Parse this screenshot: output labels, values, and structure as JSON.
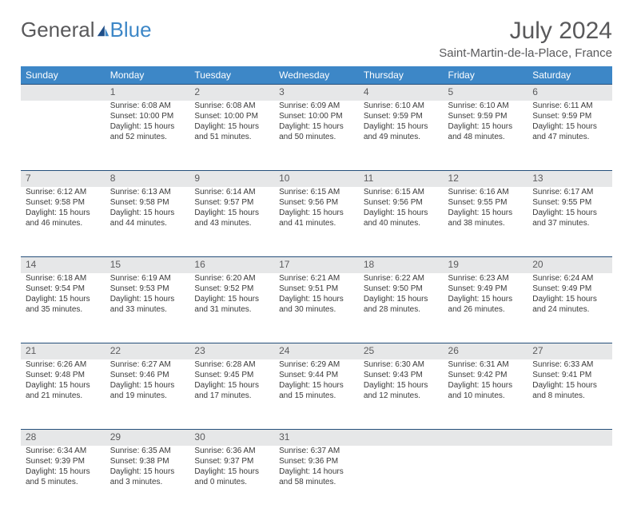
{
  "logo": {
    "text1": "General",
    "text2": "Blue"
  },
  "title": "July 2024",
  "location": "Saint-Martin-de-la-Place, France",
  "colors": {
    "header_bg": "#3d87c7",
    "header_text": "#ffffff",
    "daynum_bg": "#e6e7e8",
    "daynum_border": "#254f7a",
    "body_text": "#3a3a3a",
    "title_text": "#59595b"
  },
  "weekdays": [
    "Sunday",
    "Monday",
    "Tuesday",
    "Wednesday",
    "Thursday",
    "Friday",
    "Saturday"
  ],
  "weeks": [
    {
      "nums": [
        "",
        "1",
        "2",
        "3",
        "4",
        "5",
        "6"
      ],
      "cells": [
        [],
        [
          "Sunrise: 6:08 AM",
          "Sunset: 10:00 PM",
          "Daylight: 15 hours",
          "and 52 minutes."
        ],
        [
          "Sunrise: 6:08 AM",
          "Sunset: 10:00 PM",
          "Daylight: 15 hours",
          "and 51 minutes."
        ],
        [
          "Sunrise: 6:09 AM",
          "Sunset: 10:00 PM",
          "Daylight: 15 hours",
          "and 50 minutes."
        ],
        [
          "Sunrise: 6:10 AM",
          "Sunset: 9:59 PM",
          "Daylight: 15 hours",
          "and 49 minutes."
        ],
        [
          "Sunrise: 6:10 AM",
          "Sunset: 9:59 PM",
          "Daylight: 15 hours",
          "and 48 minutes."
        ],
        [
          "Sunrise: 6:11 AM",
          "Sunset: 9:59 PM",
          "Daylight: 15 hours",
          "and 47 minutes."
        ]
      ]
    },
    {
      "nums": [
        "7",
        "8",
        "9",
        "10",
        "11",
        "12",
        "13"
      ],
      "cells": [
        [
          "Sunrise: 6:12 AM",
          "Sunset: 9:58 PM",
          "Daylight: 15 hours",
          "and 46 minutes."
        ],
        [
          "Sunrise: 6:13 AM",
          "Sunset: 9:58 PM",
          "Daylight: 15 hours",
          "and 44 minutes."
        ],
        [
          "Sunrise: 6:14 AM",
          "Sunset: 9:57 PM",
          "Daylight: 15 hours",
          "and 43 minutes."
        ],
        [
          "Sunrise: 6:15 AM",
          "Sunset: 9:56 PM",
          "Daylight: 15 hours",
          "and 41 minutes."
        ],
        [
          "Sunrise: 6:15 AM",
          "Sunset: 9:56 PM",
          "Daylight: 15 hours",
          "and 40 minutes."
        ],
        [
          "Sunrise: 6:16 AM",
          "Sunset: 9:55 PM",
          "Daylight: 15 hours",
          "and 38 minutes."
        ],
        [
          "Sunrise: 6:17 AM",
          "Sunset: 9:55 PM",
          "Daylight: 15 hours",
          "and 37 minutes."
        ]
      ]
    },
    {
      "nums": [
        "14",
        "15",
        "16",
        "17",
        "18",
        "19",
        "20"
      ],
      "cells": [
        [
          "Sunrise: 6:18 AM",
          "Sunset: 9:54 PM",
          "Daylight: 15 hours",
          "and 35 minutes."
        ],
        [
          "Sunrise: 6:19 AM",
          "Sunset: 9:53 PM",
          "Daylight: 15 hours",
          "and 33 minutes."
        ],
        [
          "Sunrise: 6:20 AM",
          "Sunset: 9:52 PM",
          "Daylight: 15 hours",
          "and 31 minutes."
        ],
        [
          "Sunrise: 6:21 AM",
          "Sunset: 9:51 PM",
          "Daylight: 15 hours",
          "and 30 minutes."
        ],
        [
          "Sunrise: 6:22 AM",
          "Sunset: 9:50 PM",
          "Daylight: 15 hours",
          "and 28 minutes."
        ],
        [
          "Sunrise: 6:23 AM",
          "Sunset: 9:49 PM",
          "Daylight: 15 hours",
          "and 26 minutes."
        ],
        [
          "Sunrise: 6:24 AM",
          "Sunset: 9:49 PM",
          "Daylight: 15 hours",
          "and 24 minutes."
        ]
      ]
    },
    {
      "nums": [
        "21",
        "22",
        "23",
        "24",
        "25",
        "26",
        "27"
      ],
      "cells": [
        [
          "Sunrise: 6:26 AM",
          "Sunset: 9:48 PM",
          "Daylight: 15 hours",
          "and 21 minutes."
        ],
        [
          "Sunrise: 6:27 AM",
          "Sunset: 9:46 PM",
          "Daylight: 15 hours",
          "and 19 minutes."
        ],
        [
          "Sunrise: 6:28 AM",
          "Sunset: 9:45 PM",
          "Daylight: 15 hours",
          "and 17 minutes."
        ],
        [
          "Sunrise: 6:29 AM",
          "Sunset: 9:44 PM",
          "Daylight: 15 hours",
          "and 15 minutes."
        ],
        [
          "Sunrise: 6:30 AM",
          "Sunset: 9:43 PM",
          "Daylight: 15 hours",
          "and 12 minutes."
        ],
        [
          "Sunrise: 6:31 AM",
          "Sunset: 9:42 PM",
          "Daylight: 15 hours",
          "and 10 minutes."
        ],
        [
          "Sunrise: 6:33 AM",
          "Sunset: 9:41 PM",
          "Daylight: 15 hours",
          "and 8 minutes."
        ]
      ]
    },
    {
      "nums": [
        "28",
        "29",
        "30",
        "31",
        "",
        "",
        ""
      ],
      "cells": [
        [
          "Sunrise: 6:34 AM",
          "Sunset: 9:39 PM",
          "Daylight: 15 hours",
          "and 5 minutes."
        ],
        [
          "Sunrise: 6:35 AM",
          "Sunset: 9:38 PM",
          "Daylight: 15 hours",
          "and 3 minutes."
        ],
        [
          "Sunrise: 6:36 AM",
          "Sunset: 9:37 PM",
          "Daylight: 15 hours",
          "and 0 minutes."
        ],
        [
          "Sunrise: 6:37 AM",
          "Sunset: 9:36 PM",
          "Daylight: 14 hours",
          "and 58 minutes."
        ],
        [],
        [],
        []
      ]
    }
  ]
}
